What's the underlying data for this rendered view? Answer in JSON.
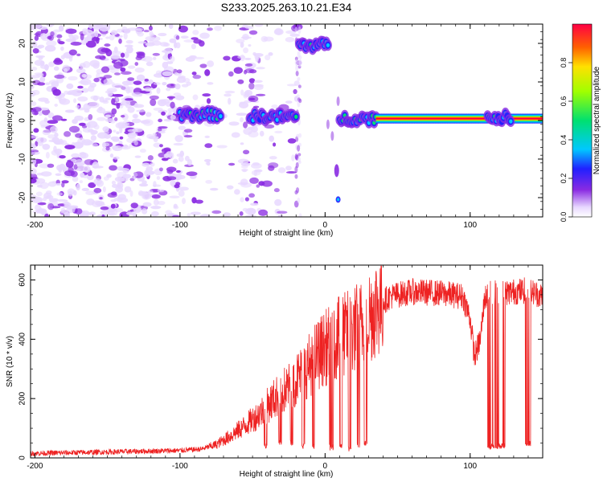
{
  "title": "S233.2025.263.10.21.E34",
  "chart_data": [
    {
      "type": "heatmap",
      "xlabel": "Height of straight line (km)",
      "ylabel": "Frequency (Hz)",
      "xlim": [
        -203,
        150
      ],
      "ylim": [
        -25,
        25
      ],
      "xticks": [
        -200,
        -100,
        0,
        100
      ],
      "yticks": [
        -20,
        -10,
        0,
        10,
        20
      ],
      "colorbar": {
        "label": "Normalized spectral amplitude",
        "range": [
          0,
          1
        ],
        "ticks": [
          "0.0",
          "0.2",
          "0.4",
          "0.6",
          "0.8"
        ],
        "tick_values": [
          0,
          0.2,
          0.4,
          0.6,
          0.8
        ]
      },
      "features": [
        {
          "x": [
            -100,
            -72
          ],
          "y": 1.5,
          "peak": 0.45
        },
        {
          "x": [
            -52,
            -20
          ],
          "y": 1.0,
          "peak": 0.45
        },
        {
          "x": [
            -18,
            2
          ],
          "y": 19.5,
          "peak": 0.45
        },
        {
          "x": [
            10,
            35
          ],
          "y": 0.5,
          "peak": 0.5
        },
        {
          "x": [
            35,
            150
          ],
          "y": 0.5,
          "peak": 0.9
        },
        {
          "x": [
            112,
            128
          ],
          "y": 0.8,
          "peak": 0.45
        }
      ]
    },
    {
      "type": "line",
      "xlabel": "Height of straight line (km)",
      "ylabel": "SNR (10 * v/v)",
      "xlim": [
        -203,
        150
      ],
      "ylim": [
        0,
        650
      ],
      "xticks": [
        -200,
        -100,
        0,
        100
      ],
      "yticks": [
        0,
        200,
        400,
        600
      ],
      "series": [
        {
          "name": "SNR",
          "color": "#ee2222",
          "envelope": {
            "x": [
              -203,
              -150,
              -100,
              -85,
              -75,
              -65,
              -55,
              -45,
              -35,
              -25,
              -15,
              -5,
              5,
              15,
              25,
              35,
              45,
              60,
              80,
              95,
              100,
              103,
              107,
              110,
              115,
              120,
              130,
              140,
              150
            ],
            "y": [
              15,
              20,
              25,
              30,
              45,
              75,
              110,
              150,
              200,
              240,
              290,
              350,
              390,
              420,
              450,
              510,
              545,
              560,
              555,
              545,
              470,
              340,
              400,
              540,
              560,
              555,
              560,
              565,
              545
            ]
          },
          "dropouts": [
            {
              "x": [
                -42,
                -40
              ],
              "low": 30
            },
            {
              "x": [
                -32,
                -30
              ],
              "low": 40
            },
            {
              "x": [
                -24,
                -22
              ],
              "low": 40
            },
            {
              "x": [
                -16,
                -14
              ],
              "low": 30
            },
            {
              "x": [
                -9,
                -7
              ],
              "low": 30
            },
            {
              "x": [
                3,
                6
              ],
              "low": 25
            },
            {
              "x": [
                10,
                12
              ],
              "low": 30
            },
            {
              "x": [
                16,
                18
              ],
              "low": 20
            },
            {
              "x": [
                22,
                24
              ],
              "low": 30
            },
            {
              "x": [
                27,
                29
              ],
              "low": 40
            },
            {
              "x": [
                112,
                124
              ],
              "low": 30
            },
            {
              "x": [
                138,
                142
              ],
              "low": 40
            }
          ]
        }
      ]
    }
  ]
}
